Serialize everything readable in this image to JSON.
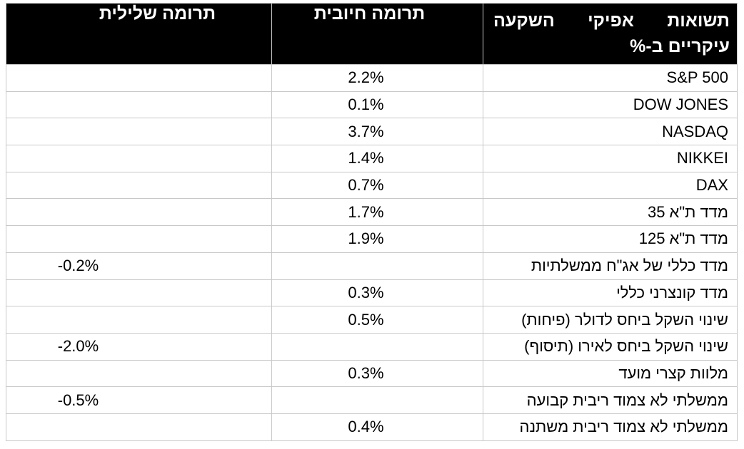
{
  "table": {
    "headers": {
      "name": "תשואות אפיקי השקעה עיקריים ב-%",
      "positive": "תרומה חיובית",
      "negative": "תרומה שלילית"
    },
    "rows": [
      {
        "name": "S&P 500",
        "positive": "2.2%",
        "negative": ""
      },
      {
        "name": "DOW JONES",
        "positive": "0.1%",
        "negative": ""
      },
      {
        "name": "NASDAQ",
        "positive": "3.7%",
        "negative": ""
      },
      {
        "name": "NIKKEI",
        "positive": "1.4%",
        "negative": ""
      },
      {
        "name": "DAX",
        "positive": "0.7%",
        "negative": ""
      },
      {
        "name": "מדד ת\"א 35",
        "positive": "1.7%",
        "negative": ""
      },
      {
        "name": "מדד ת\"א 125",
        "positive": "1.9%",
        "negative": ""
      },
      {
        "name": "מדד כללי של אג\"ח ממשלתיות",
        "positive": "",
        "negative": "-0.2%"
      },
      {
        "name": "מדד קונצרני כללי",
        "positive": "0.3%",
        "negative": ""
      },
      {
        "name": "שינוי השקל ביחס לדולר (פיחות)",
        "positive": "0.5%",
        "negative": ""
      },
      {
        "name": "שינוי השקל ביחס לאירו (תיסוף)",
        "positive": "",
        "negative": "-2.0%"
      },
      {
        "name": "מלוות קצרי מועד",
        "positive": "0.3%",
        "negative": ""
      },
      {
        "name": "ממשלתי לא צמוד ריבית קבועה",
        "positive": "",
        "negative": "-0.5%"
      },
      {
        "name": "ממשלתי לא צמוד ריבית משתנה",
        "positive": "0.4%",
        "negative": ""
      }
    ]
  }
}
